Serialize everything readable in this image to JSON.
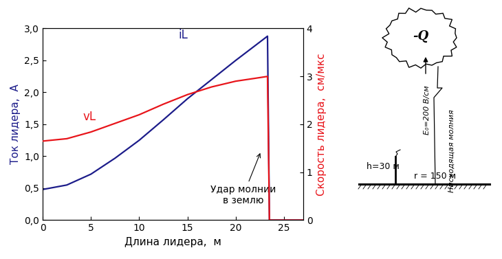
{
  "chart_data": {
    "type": "line",
    "xlabel": "Длина лидера,  м",
    "ylabel": "Ток лидера,  А",
    "y2label": "Скорость лидера,  см/мкс",
    "annotations": [
      "Удар молнии\nв землю"
    ],
    "xlim": [
      0,
      27
    ],
    "xticks": [
      0,
      5,
      10,
      15,
      20,
      25
    ],
    "ylim": [
      0,
      3.0
    ],
    "yticks": [
      {
        "value": 0.0,
        "label": "0,0"
      },
      {
        "value": 0.5,
        "label": "0,5"
      },
      {
        "value": 1.0,
        "label": "1,0"
      },
      {
        "value": 1.5,
        "label": "1,5"
      },
      {
        "value": 2.0,
        "label": "2,0"
      },
      {
        "value": 2.5,
        "label": "2,5"
      },
      {
        "value": 3.0,
        "label": "3,0"
      }
    ],
    "y2lim": [
      0,
      4
    ],
    "y2ticks": [
      0,
      1,
      2,
      3,
      4
    ],
    "x": [
      0,
      2.5,
      5,
      7.5,
      10,
      12.5,
      15,
      17.5,
      20,
      22,
      23.3,
      23.5,
      27
    ],
    "series": [
      {
        "name": "iL",
        "color": "#1c1c8a",
        "values": [
          0.48,
          0.55,
          0.72,
          0.97,
          1.25,
          1.57,
          1.9,
          2.2,
          2.5,
          2.73,
          2.88,
          0.0,
          0.0
        ]
      },
      {
        "name": "vL",
        "color": "#e8141a",
        "axis": "y2",
        "values": [
          1.65,
          1.7,
          1.84,
          2.02,
          2.2,
          2.42,
          2.62,
          2.78,
          2.9,
          2.96,
          3.0,
          0.0,
          0.0
        ]
      }
    ]
  },
  "diagram": {
    "cloud": {
      "label": "-Q"
    },
    "field": {
      "label": "E₀=200 В/см"
    },
    "lightning": {
      "label": "Нисходящая молния"
    },
    "tower": {
      "label": "h=30 м"
    },
    "distance": {
      "label": "r = 150 м"
    }
  }
}
